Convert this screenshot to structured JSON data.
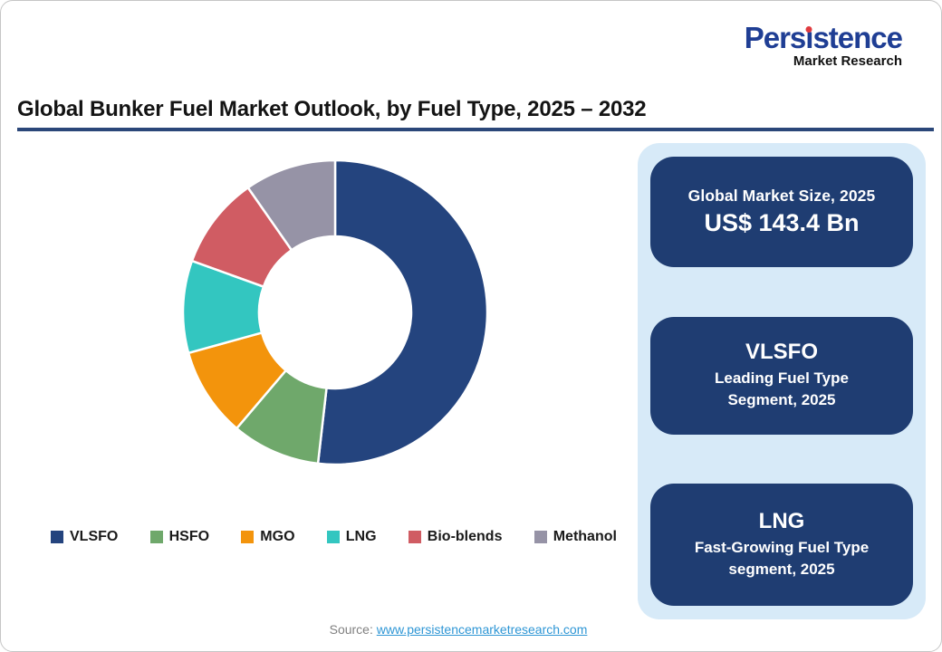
{
  "logo": {
    "brand": "Persistence",
    "name_pre": "Pers",
    "name_i": "ı",
    "name_post": "stence",
    "subtitle": "Market Research",
    "brand_color": "#1f3e94",
    "dot_color": "#e03a3e"
  },
  "header": {
    "title": "Global Bunker Fuel Market Outlook, by Fuel Type, 2025 – 2032",
    "rule_color": "#2b4779"
  },
  "chart_data": {
    "type": "pie",
    "subtype": "donut",
    "title": "Global Bunker Fuel Market Outlook, by Fuel Type, 2025 – 2032",
    "start_angle_deg": 0,
    "inner_radius_ratio": 0.5,
    "legend_position": "bottom",
    "values_are": "percent share, estimated from arc angles",
    "segments": [
      {
        "label": "VLSFO",
        "value": 51.8,
        "color": "#24447e"
      },
      {
        "label": "HSFO",
        "value": 9.4,
        "color": "#6fa86b"
      },
      {
        "label": "MGO",
        "value": 9.5,
        "color": "#f3940c"
      },
      {
        "label": "LNG",
        "value": 9.8,
        "color": "#33c6c0"
      },
      {
        "label": "Bio-blends",
        "value": 9.8,
        "color": "#d05c63"
      },
      {
        "label": "Methanol",
        "value": 9.7,
        "color": "#9693a6"
      }
    ]
  },
  "panel": {
    "background": "#d7eaf8",
    "card_color": "#1f3d72",
    "cards": [
      {
        "top": "Global Market Size, 2025",
        "main": "US$ 143.4 Bn"
      },
      {
        "heading": "VLSFO",
        "sub1": "Leading Fuel Type",
        "sub2": "Segment, 2025"
      },
      {
        "heading": "LNG",
        "sub1": "Fast-Growing Fuel Type",
        "sub2": "segment, 2025"
      }
    ]
  },
  "footer": {
    "source_label": "Source:",
    "source_link": "www.persistencemarketresearch.com"
  }
}
